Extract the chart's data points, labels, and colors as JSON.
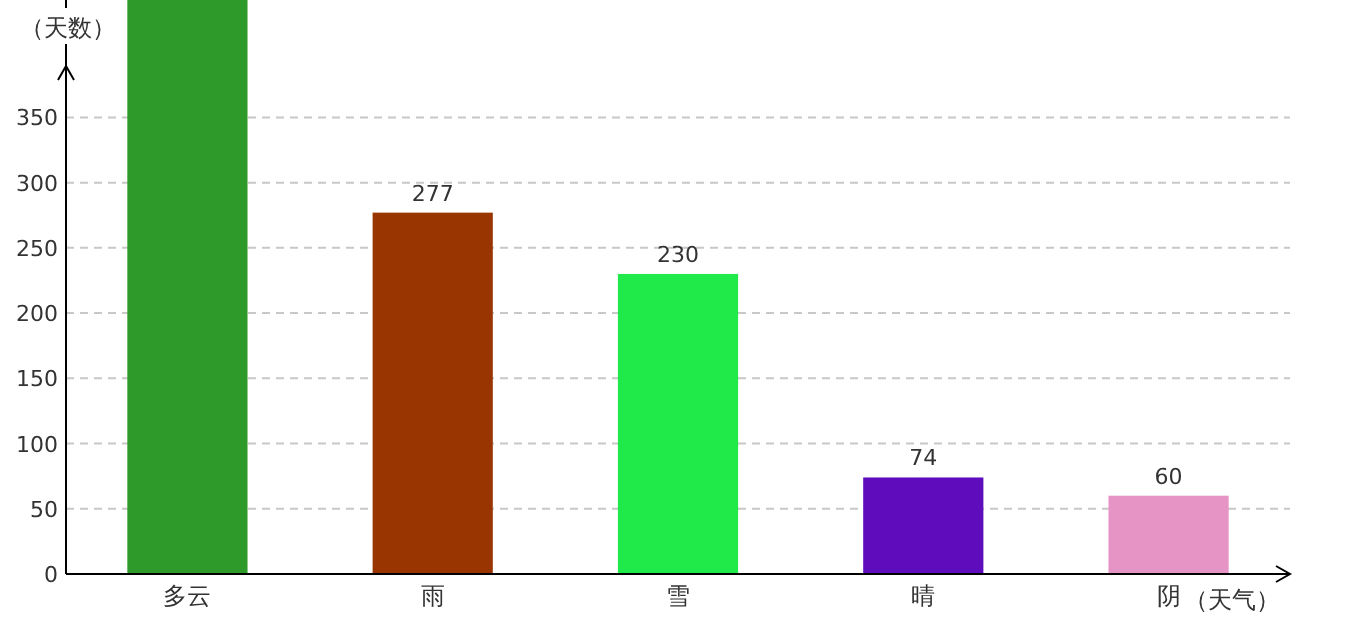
{
  "chart_data": {
    "type": "bar",
    "xlabel": "（天气）",
    "ylabel": "（天数）",
    "categories": [
      "多云",
      "雨",
      "雪",
      "晴",
      "阴"
    ],
    "values": [
      440,
      277,
      230,
      74,
      60
    ],
    "colors": [
      "#2e9a2a",
      "#983500",
      "#20ea4a",
      "#5e0cbc",
      "#e693c6"
    ],
    "value_labels": [
      null,
      "277",
      "230",
      "74",
      "60"
    ],
    "ylim": [
      0,
      440
    ],
    "yticks": [
      0,
      50,
      100,
      150,
      200,
      250,
      300,
      350
    ],
    "grid": "y"
  }
}
